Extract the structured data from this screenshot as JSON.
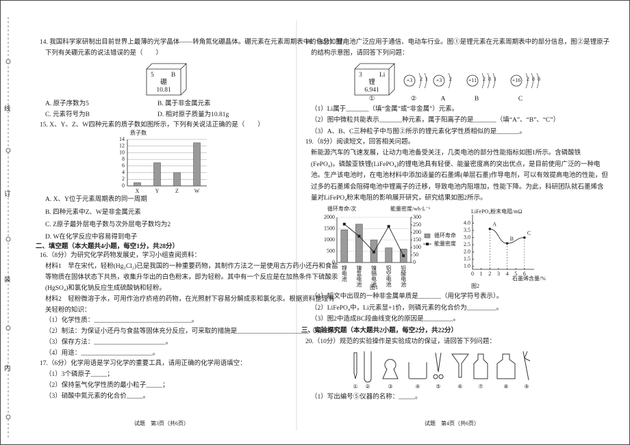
{
  "binding": [
    "线",
    "订",
    "装",
    "内"
  ],
  "left": {
    "q14": {
      "stem": [
        "14. 我国科学家研制出目前世界上最薄的光学晶体——转角氮化硼晶体。硼元素在元素周期表中的信息如图，",
        "下列有关硼元素的说法错误的是（　　）"
      ],
      "element": {
        "number": "5",
        "symbol": "B",
        "name": "硼",
        "mass": "10.81"
      },
      "options": [
        "A. 原子序数为5",
        "B. 属于非金属元素",
        "C. 元素符号为B",
        "D. 相对原子质量为10.81g"
      ]
    },
    "q15": {
      "stem": "15. X、Y、Z、W四种元素的质子数如图所示，下列有关说法正确的是（　　）",
      "chart": {
        "ylabel": "质子数",
        "categories": [
          "X",
          "Y",
          "Z",
          "W"
        ],
        "values": [
          1,
          7,
          4,
          13
        ],
        "ylim": [
          0,
          14
        ],
        "yticks": [
          0,
          2,
          4,
          6,
          8,
          10,
          12,
          14
        ]
      },
      "options": [
        "A. X、Y位于元素周期表的同一周期",
        "B. 四种元素中Z、W是非金属元素",
        "C. Z原子最外层电子数与次外层电子数均为2",
        "D. W在化学反应中容易得到电子"
      ]
    },
    "section2": "二、填空题（本大题共4小题，每空1分，共28分）",
    "q16": {
      "stem": "16.（8分）为研究化学药物发展史，学习小组查阅资料：",
      "material1": [
        "材料1　早在宋代，轻粉(Hg₂Cl₂)已是我国的一种重要药物，其制作方法之一是使用古方药小还丹和食盐",
        "等物质在固体状态下共热，收集升华出的白色粉末，即为轻粉。其中有一个反应是在加热条件下硫酸汞",
        "(HgSO₄)和氯化钠反应生成硫酸钠和轻粉。"
      ],
      "material2": [
        "材料2　轻粉微溶于水，可用作治疗疥疮的药物，在光照射下容易分解成汞和氯化汞。根据资料整理有",
        "关轻粉的知识："
      ],
      "items": [
        "（1）化学性质：______________________________。",
        "（2）制法：为保证小还丹与食盐等固体充分反应，可采取的措施是______________________（填一条）。",
        "（3）保存方法：______________________。",
        "（4）用途：______________________。"
      ]
    },
    "q17": {
      "stem": "17.（6分）化学用语是学习化学的重要工具，请用正确的化学用语填空：",
      "items": [
        "（1）3个磷原子_____；",
        "（2）保持氢气化学性质的最小粒子_____；",
        "（3）硝酸中氮元素的化合价_____。"
      ]
    },
    "footer": "试题　第3页（共6页）"
  },
  "right": {
    "q18": {
      "stem": [
        "18.（8分）锂电池广泛应用于通信、电动车行业。图①是锂元素在元素周期表中的部分信息，图②是锂原子",
        "的结构示意图，请回答下列问题："
      ],
      "element": {
        "number": "3",
        "symbol": "Li",
        "name": "锂",
        "mass": "6.941"
      },
      "atoms": [
        {
          "nucleus": "+3",
          "shells": [
            2,
            1
          ],
          "label": "②"
        },
        {
          "nucleus": "+3",
          "shells": [
            2
          ],
          "label": "A"
        },
        {
          "nucleus": "+11",
          "shells": [
            2,
            8,
            1
          ],
          "label": "B"
        },
        {
          "nucleus": "+16",
          "shells": [
            2,
            8,
            8
          ],
          "label": "C"
        }
      ],
      "element_label": "①",
      "items": [
        "（1）Li属于_______（填“金属”或“非金属”）元素。",
        "（2）图中微粒共能表示_______种元素，属于阳离子的是_______（填“A”、“B”、“C”）",
        "（3）A、B、C三种粒子中与图②所示的锂元素化学性质相似的是_______。"
      ]
    },
    "q19": {
      "stem": "19.（8分）阅读短文，回答相关问题。",
      "paragraph": [
        "新能源汽车的飞速发展，让动力电池备受关注，几类电池的部分性能指标如图1所示。含磷酸铁",
        "(FePO₄)，磷酸亚铁锂(LiFePO₄)的锂电池具有轻便、能量密度高的突出优点，是目前使用广泛的一种电",
        "池。生产该电池时，在电池材料中添加适量的石墨烯(单层石墨)作导电剂，可以有效提高电池的性能，但",
        "过多的石墨烯会阻碍电池中锂离子的迁移，导致电池内阻增加，性能下降。为此，科研团队就石墨烯含",
        "量对LiFePO₄粉末电阻的影响展开研究，研究结果如图2所示。"
      ],
      "figure1": {
        "ylabel": "循环寿命/次",
        "y2label": "能量密度/wh·L⁻¹",
        "caption": "图1",
        "categories": [
          "锂电池",
          "镍氢电池",
          "镍镉电池",
          "铝空电池",
          "铅酸电池"
        ],
        "series": [
          {
            "name": "循环寿命",
            "color": "#9a9a9a",
            "values": [
              1450,
              1700,
              1000,
              650,
              600
            ]
          },
          {
            "name": "能量密度",
            "color": "#222222",
            "axis": "y2",
            "values": [
              255,
              175,
              70,
              240,
              45
            ]
          }
        ],
        "ylim": [
          0,
          2000
        ],
        "yticks": [
          0,
          500,
          1000,
          1500,
          2000
        ],
        "y2lim": [
          0,
          300
        ],
        "y2ticks": [
          0,
          50,
          100,
          150,
          200,
          250,
          300
        ]
      },
      "figure2": {
        "title": "LiFePO₄粉末电阻/mΩ",
        "xlabel": "石墨烯含量/%",
        "caption": "图2",
        "x": [
          2,
          4,
          6
        ],
        "values": [
          3.6,
          2.6,
          3.0
        ],
        "point_labels": [
          "A",
          "B",
          "C"
        ],
        "xlim": [
          0,
          6.8
        ],
        "xticks": [
          0,
          1,
          2,
          3,
          4,
          5,
          6
        ],
        "ylim": [
          0.8,
          4.4
        ],
        "yticks": [
          {
            "value": 1.0,
            "label": "1.0"
          },
          1.5,
          {
            "value": 2.0,
            "label": "2.0"
          },
          2.5,
          {
            "value": 3.0,
            "label": "3.0"
          },
          3.5,
          {
            "value": 4.0,
            "label": "4.0"
          }
        ]
      },
      "items": [
        "（1）短文中出现的一种非金属单质是_______（用化学符号表示）。",
        "（2）LiFePO₄中，Li元素显+1价，则磷元素的化合价为_________。",
        "（3）图2中造成BC段曲线变化的原因是_________。"
      ]
    },
    "section3": "三、实验探究题（本大题共2小题，每空2分，共22分）",
    "q20": {
      "stem": "20.（10分）规范的实验操作是实验成功的保证，请回答下列问题：",
      "equipment": [
        "①",
        "②",
        "③",
        "④",
        "⑤",
        "⑥",
        "⑦",
        "⑧",
        "⑨"
      ],
      "items": [
        "（1）写出编号⑤仪器的名称：_____。"
      ]
    },
    "footer": "试题　第4页（共6页）"
  }
}
